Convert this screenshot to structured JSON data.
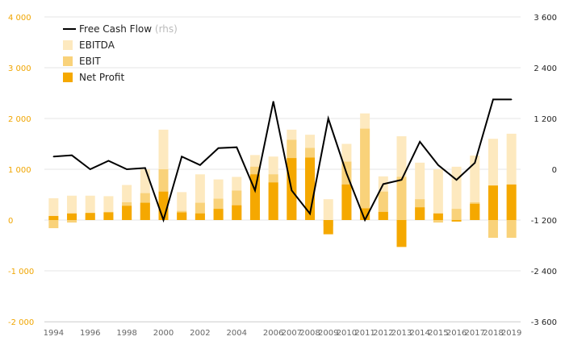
{
  "chart_data": {
    "type": "bar",
    "legend": {
      "position": "top-left",
      "items": [
        {
          "key": "fcf",
          "label": "Free Cash Flow",
          "suffix": "(rhs)"
        },
        {
          "key": "ebitda",
          "label": "EBITDA"
        },
        {
          "key": "ebit",
          "label": "EBIT"
        },
        {
          "key": "net_profit",
          "label": "Net Profit"
        }
      ]
    },
    "colors": {
      "ebitda": "#fde9bf",
      "ebit": "#f9d27a",
      "net_profit": "#f5a800",
      "fcf": "#000000",
      "left_axis": "#f0a500",
      "grid": "#e6e6e6"
    },
    "years": [
      1994,
      1995,
      1996,
      1997,
      1998,
      1999,
      2000,
      2001,
      2002,
      2003,
      2004,
      2005,
      2006,
      2007,
      2008,
      2009,
      2010,
      2011,
      2012,
      2013,
      2014,
      2015,
      2016,
      2017,
      2018,
      2019
    ],
    "x_tick_labels": [
      "1994",
      "1996",
      "1998",
      "2000",
      "2002",
      "2004",
      "2006",
      "2008",
      "2010",
      "2012",
      "2014",
      "2016",
      "2018"
    ],
    "x_tick_labels_2": [
      "1994",
      "1996",
      "1998",
      "2000",
      "2002",
      "2004",
      "2007",
      "2009",
      "2011",
      "2013",
      "2015",
      "2017",
      "2019"
    ],
    "series": [
      {
        "name": "EBITDA",
        "key": "ebitda",
        "values": [
          430,
          480,
          480,
          470,
          690,
          1000,
          1780,
          550,
          900,
          800,
          850,
          1280,
          1250,
          1780,
          1680,
          410,
          1500,
          2100,
          860,
          1650,
          1130,
          1000,
          1050,
          1270,
          1600,
          1700
        ]
      },
      {
        "name": "EBIT",
        "key": "ebit",
        "values": [
          -160,
          -50,
          130,
          160,
          350,
          530,
          1000,
          180,
          340,
          420,
          580,
          1050,
          900,
          1580,
          1420,
          -120,
          1150,
          1800,
          560,
          850,
          410,
          -50,
          220,
          350,
          -350,
          -350
        ]
      },
      {
        "name": "Net Profit",
        "key": "net_profit",
        "values": [
          80,
          130,
          140,
          150,
          280,
          340,
          560,
          150,
          130,
          220,
          290,
          900,
          740,
          1220,
          1230,
          -280,
          700,
          230,
          160,
          -530,
          250,
          130,
          -30,
          320,
          680,
          700
        ]
      },
      {
        "name": "Free Cash Flow",
        "key": "fcf",
        "axis": "right",
        "values": [
          300,
          330,
          0,
          200,
          0,
          30,
          -1200,
          300,
          100,
          500,
          520,
          -500,
          1600,
          -500,
          -1050,
          1200,
          -100,
          -1200,
          -350,
          -250,
          650,
          100,
          -250,
          150,
          1650,
          1650
        ]
      }
    ],
    "y_left": {
      "ylim": [
        -2000,
        4000
      ],
      "ticks": [
        "-2 000",
        "-1 000",
        "0",
        "1 000",
        "2 000",
        "3 000",
        "4 000"
      ],
      "tick_values": [
        -2000,
        -1000,
        0,
        1000,
        2000,
        3000,
        4000
      ]
    },
    "y_right": {
      "ylim": [
        -3600,
        3600
      ],
      "ticks": [
        "-3 600",
        "-2 400",
        "-1 200",
        "0",
        "1 200",
        "2 400",
        "3 600"
      ],
      "tick_values": [
        -3600,
        -2400,
        -1200,
        0,
        1200,
        2400,
        3600
      ]
    },
    "grid": true
  }
}
